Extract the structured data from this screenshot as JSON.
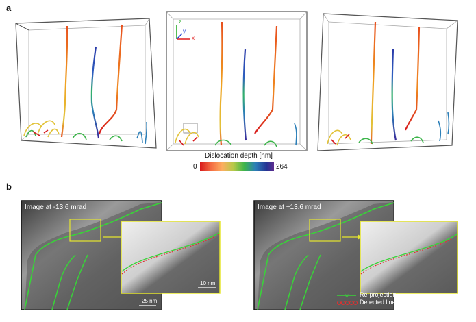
{
  "panel_a": {
    "label": "a",
    "axis_labels": {
      "x": "x",
      "y": "y",
      "z": "z"
    },
    "colorbar": {
      "title": "Dislocation depth [nm]",
      "min_label": "0",
      "max_label": "264",
      "colors": [
        "#d7191c",
        "#f46d43",
        "#fdae61",
        "#b8c94a",
        "#3cb54a",
        "#2c7fb8",
        "#253494",
        "#5e2c8f"
      ]
    }
  },
  "panel_b": {
    "label": "b",
    "left_image": {
      "title": "Image at -13.6 mrad",
      "scale_main": "25 nm",
      "scale_inset": "10 nm"
    },
    "right_image": {
      "title": "Image at +13.6 mrad"
    },
    "legend": {
      "reprojection": "Re-projection",
      "detected": "Detected line"
    },
    "colors": {
      "reprojection": "#38d438",
      "detected": "#e03030",
      "inset_frame": "#e6e62e"
    }
  }
}
